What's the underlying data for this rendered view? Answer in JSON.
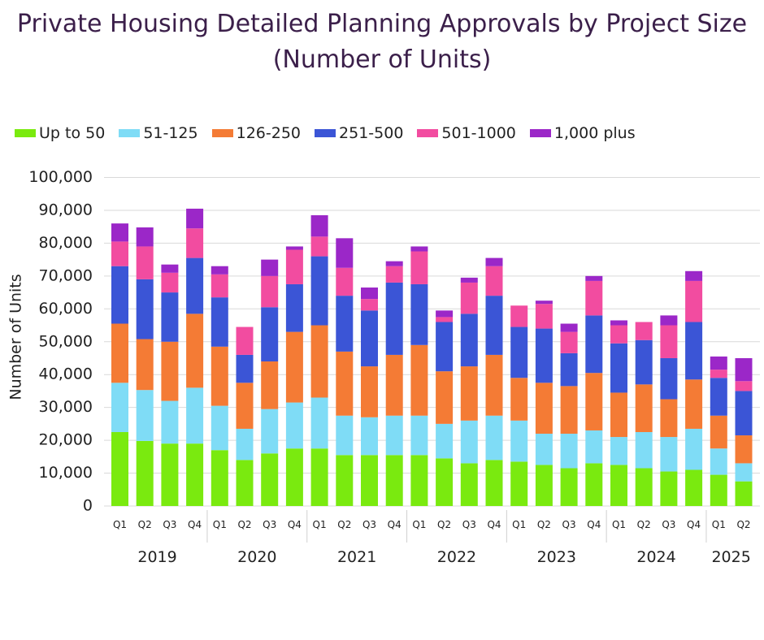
{
  "chart_data": {
    "type": "bar",
    "stacked": true,
    "title": "Private Housing Detailed Planning Approvals by Project Size (Number of Units)",
    "ylabel": "Number of Units",
    "xlabel": "",
    "ylim": [
      0,
      100000
    ],
    "y_ticks": [
      "0",
      "10,000",
      "20,000",
      "30,000",
      "40,000",
      "50,000",
      "60,000",
      "70,000",
      "80,000",
      "90,000",
      "100,000"
    ],
    "y_tick_values": [
      0,
      10000,
      20000,
      30000,
      40000,
      50000,
      60000,
      70000,
      80000,
      90000,
      100000
    ],
    "grid": true,
    "legend_position": "top-left",
    "categories": [
      "Q1",
      "Q2",
      "Q3",
      "Q4",
      "Q1",
      "Q2",
      "Q3",
      "Q4",
      "Q1",
      "Q2",
      "Q3",
      "Q4",
      "Q1",
      "Q2",
      "Q3",
      "Q4",
      "Q1",
      "Q2",
      "Q3",
      "Q4",
      "Q1",
      "Q2",
      "Q3",
      "Q4",
      "Q1",
      "Q2"
    ],
    "years": [
      {
        "label": "2019",
        "quarters": 4
      },
      {
        "label": "2020",
        "quarters": 4
      },
      {
        "label": "2021",
        "quarters": 4
      },
      {
        "label": "2022",
        "quarters": 4
      },
      {
        "label": "2023",
        "quarters": 4
      },
      {
        "label": "2024",
        "quarters": 4
      },
      {
        "label": "2025",
        "quarters": 2
      }
    ],
    "series": [
      {
        "name": "Up to 50",
        "color": "#7aea0f",
        "values": [
          22500,
          19800,
          19000,
          19000,
          17000,
          14000,
          16000,
          17500,
          17500,
          15500,
          15500,
          15500,
          15500,
          14500,
          13000,
          14000,
          13500,
          12500,
          11500,
          13000,
          12500,
          11500,
          10500,
          11000,
          9500,
          7500
        ]
      },
      {
        "name": "51-125",
        "color": "#7fdcf6",
        "values": [
          15000,
          15500,
          13000,
          17000,
          13500,
          9500,
          13500,
          14000,
          15500,
          12000,
          11500,
          12000,
          12000,
          10500,
          13000,
          13500,
          12500,
          9500,
          10500,
          10000,
          8500,
          11000,
          10500,
          12500,
          8000,
          5500
        ]
      },
      {
        "name": "126-250",
        "color": "#f47b35",
        "values": [
          18000,
          15500,
          18000,
          22500,
          18000,
          14000,
          14500,
          21500,
          22000,
          19500,
          15500,
          18500,
          21500,
          16000,
          16500,
          18500,
          13000,
          15500,
          14500,
          17500,
          13500,
          14500,
          11500,
          15000,
          10000,
          8500
        ]
      },
      {
        "name": "251-500",
        "color": "#3b55d6",
        "values": [
          17500,
          18200,
          15000,
          17000,
          15000,
          8500,
          16500,
          14500,
          21000,
          17000,
          17000,
          22000,
          18500,
          15000,
          16000,
          18000,
          15500,
          16500,
          10000,
          17500,
          15000,
          13500,
          12500,
          17500,
          11500,
          13500
        ]
      },
      {
        "name": "501-1000",
        "color": "#f24ca0",
        "values": [
          7500,
          10000,
          6000,
          9000,
          7000,
          8500,
          9500,
          10500,
          6000,
          8500,
          3500,
          5000,
          10000,
          1500,
          9500,
          9000,
          6500,
          7500,
          6500,
          10500,
          5500,
          5500,
          10000,
          12500,
          2500,
          3000
        ]
      },
      {
        "name": "1,000 plus",
        "color": "#9b27c8",
        "values": [
          5500,
          5800,
          2500,
          6000,
          2500,
          0,
          5000,
          1000,
          6500,
          9000,
          3500,
          1500,
          1500,
          2000,
          1500,
          2500,
          0,
          1000,
          2500,
          1500,
          1500,
          0,
          3000,
          3000,
          4000,
          7000
        ]
      }
    ]
  }
}
